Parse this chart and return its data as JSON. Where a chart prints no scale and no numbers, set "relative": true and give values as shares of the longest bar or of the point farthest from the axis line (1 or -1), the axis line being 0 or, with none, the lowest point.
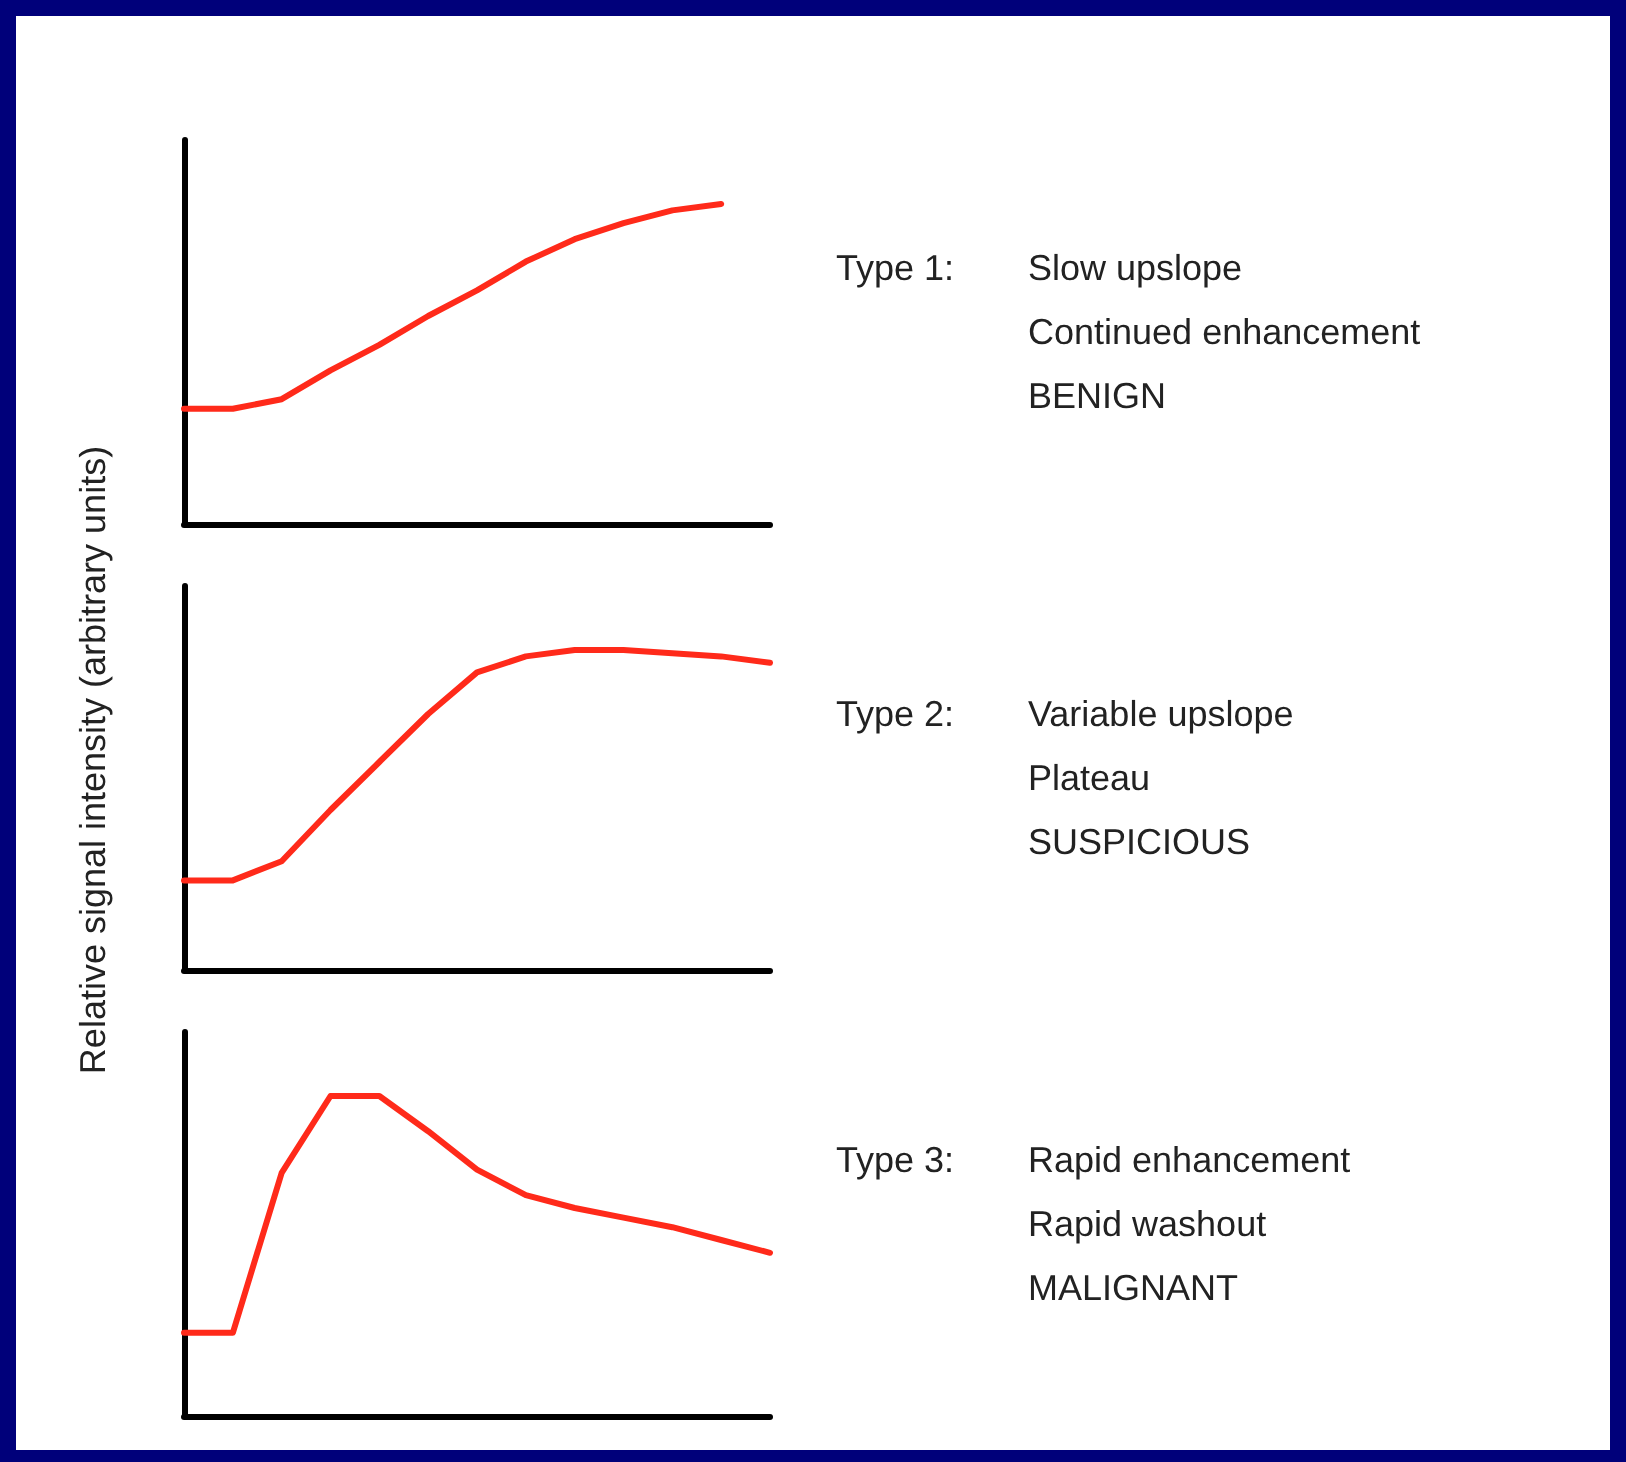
{
  "chart_data": [
    {
      "type": "line",
      "relative": true,
      "ylabel": "Relative signal intensity (arbitrary units)",
      "categories": [
        null,
        null,
        null,
        null,
        null,
        null,
        null,
        null,
        null,
        null,
        null,
        null,
        null
      ],
      "series": [
        {
          "color": "#ff2a1a",
          "values": [
            0.36,
            0.36,
            0.39,
            0.48,
            0.56,
            0.65,
            0.73,
            0.82,
            0.89,
            0.94,
            0.98,
            1.0,
            null
          ]
        }
      ],
      "annotations": [
        "Type 1:",
        "Slow upslope",
        "Continued enhancement",
        "BENIGN"
      ],
      "grid": false,
      "marker": "none",
      "line_style": "solid"
    },
    {
      "type": "line",
      "relative": true,
      "categories": [
        null,
        null,
        null,
        null,
        null,
        null,
        null,
        null,
        null,
        null,
        null,
        null,
        null
      ],
      "series": [
        {
          "color": "#ff2a1a",
          "values": [
            0.28,
            0.28,
            0.34,
            0.5,
            0.65,
            0.8,
            0.93,
            0.98,
            1.0,
            1.0,
            0.99,
            0.98,
            0.96
          ]
        }
      ],
      "annotations": [
        "Type 2:",
        "Variable upslope",
        "Plateau",
        "SUSPICIOUS"
      ],
      "grid": false,
      "marker": "none",
      "line_style": "solid"
    },
    {
      "type": "line",
      "relative": true,
      "categories": [
        null,
        null,
        null,
        null,
        null,
        null,
        null,
        null,
        null,
        null,
        null,
        null,
        null
      ],
      "series": [
        {
          "color": "#ff2a1a",
          "values": [
            0.26,
            0.26,
            0.76,
            1.0,
            1.0,
            0.89,
            0.77,
            0.69,
            0.65,
            0.62,
            0.59,
            0.55,
            0.51
          ]
        }
      ],
      "annotations": [
        "Type 3:",
        "Rapid enhancement",
        "Rapid washout",
        "MALIGNANT"
      ],
      "grid": false,
      "marker": "none",
      "line_style": "solid"
    }
  ]
}
